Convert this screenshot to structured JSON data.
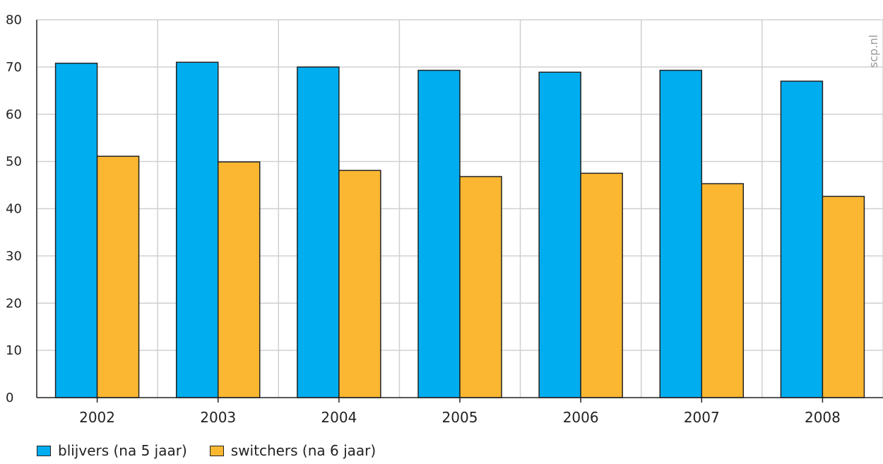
{
  "chart_data": {
    "type": "bar",
    "categories": [
      "2002",
      "2003",
      "2004",
      "2005",
      "2006",
      "2007",
      "2008"
    ],
    "series": [
      {
        "name": "blijvers (na 5 jaar)",
        "color": "#00adef",
        "values": [
          70.8,
          71.0,
          70.0,
          69.3,
          68.9,
          69.3,
          67.0
        ]
      },
      {
        "name": "switchers (na 6 jaar)",
        "color": "#fbb731",
        "values": [
          51.1,
          49.9,
          48.1,
          46.8,
          47.5,
          45.3,
          42.6
        ]
      }
    ],
    "ylim": [
      0,
      80
    ],
    "yticks": [
      0,
      10,
      20,
      30,
      40,
      50,
      60,
      70,
      80
    ],
    "grid": true,
    "legend_position": "bottom-left",
    "watermark": "scp.nl",
    "title": "",
    "xlabel": "",
    "ylabel": ""
  }
}
